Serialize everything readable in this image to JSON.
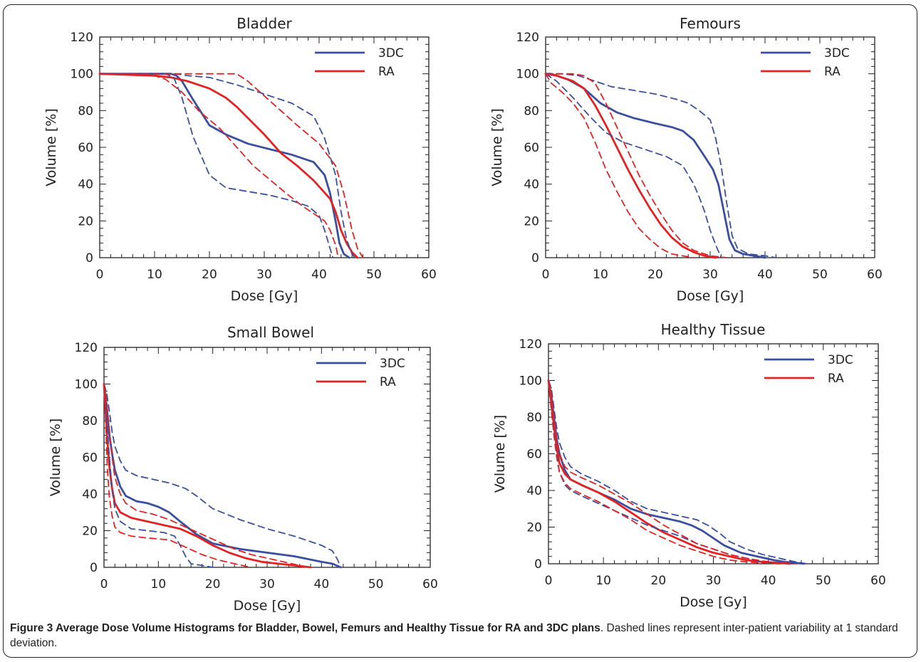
{
  "caption": {
    "bold": "Figure 3 Average Dose Volume Histograms for Bladder, Bowel, Femurs and Healthy Tissue for RA and 3DC plans",
    "rest": ". Dashed lines represent inter-patient variability at 1 standard deviation."
  },
  "colors": {
    "3DC": "#3a4fa0",
    "RA": "#e32222"
  },
  "chart_data": [
    {
      "type": "line",
      "title": "Bladder",
      "xlabel": "Dose [Gy]",
      "ylabel": "Volume [%]",
      "xlim": [
        0,
        60
      ],
      "ylim": [
        0,
        120
      ],
      "xticks": [
        0,
        10,
        20,
        30,
        40,
        50,
        60
      ],
      "yticks": [
        0,
        20,
        40,
        60,
        80,
        100,
        120
      ],
      "legend": [
        "3DC",
        "RA"
      ],
      "legend_position": "top-right",
      "series": [
        {
          "name": "3DC",
          "style": "solid",
          "x": [
            0,
            10,
            13,
            14,
            15,
            17,
            20,
            23,
            27,
            31,
            35,
            39,
            41,
            42,
            43,
            43.7,
            44.5,
            45.5
          ],
          "y": [
            100,
            100,
            100,
            99,
            96,
            86,
            72,
            67,
            62,
            59,
            56,
            52,
            45,
            35,
            20,
            8,
            2,
            0
          ]
        },
        {
          "name": "RA",
          "style": "solid",
          "x": [
            0,
            10,
            13,
            16,
            20,
            23,
            25,
            27,
            30,
            33,
            36,
            39,
            42,
            43,
            44,
            45,
            46,
            47
          ],
          "y": [
            100,
            99,
            98,
            96,
            92,
            87,
            82,
            76,
            67,
            57,
            50,
            42,
            32,
            25,
            15,
            8,
            3,
            0
          ]
        },
        {
          "style": "dashed",
          "color": "3DC",
          "x": [
            0,
            12,
            13.5,
            15,
            17,
            20,
            23,
            27,
            31,
            35,
            38,
            40,
            41,
            42,
            42.5
          ],
          "y": [
            100,
            100,
            98,
            87,
            66,
            45,
            38,
            36,
            34,
            31,
            28,
            23,
            15,
            5,
            0
          ]
        },
        {
          "style": "dashed",
          "color": "3DC",
          "x": [
            0,
            13,
            14,
            16,
            20,
            25,
            30,
            35,
            39,
            41,
            43,
            44,
            45,
            46,
            46.5
          ],
          "y": [
            100,
            100,
            100,
            99,
            98,
            94,
            89,
            84,
            77,
            65,
            45,
            25,
            10,
            2,
            0
          ]
        },
        {
          "style": "dashed",
          "color": "RA",
          "x": [
            0,
            10,
            12,
            15,
            18,
            22,
            25,
            28,
            30,
            32,
            34,
            37,
            39,
            41,
            42,
            43,
            43.5
          ],
          "y": [
            100,
            99,
            97,
            90,
            80,
            70,
            60,
            50,
            45,
            40,
            35,
            28,
            24,
            20,
            15,
            7,
            0
          ]
        },
        {
          "style": "dashed",
          "color": "RA",
          "x": [
            0,
            20,
            25,
            27,
            30,
            33,
            36,
            40,
            43,
            44.5,
            46,
            47,
            48
          ],
          "y": [
            100,
            100,
            100,
            96,
            88,
            80,
            72,
            62,
            50,
            35,
            15,
            5,
            0
          ]
        }
      ]
    },
    {
      "type": "line",
      "title": "Femours",
      "xlabel": "Dose [Gy]",
      "ylabel": "Volume [%]",
      "xlim": [
        0,
        60
      ],
      "ylim": [
        0,
        120
      ],
      "xticks": [
        0,
        10,
        20,
        30,
        40,
        50,
        60
      ],
      "yticks": [
        0,
        20,
        40,
        60,
        80,
        100,
        120
      ],
      "legend": [
        "3DC",
        "RA"
      ],
      "legend_position": "top-right",
      "series": [
        {
          "name": "3DC",
          "style": "solid",
          "x": [
            0,
            1,
            2,
            4,
            7,
            10,
            13,
            16,
            20,
            23,
            25,
            27,
            29,
            30.5,
            31.5,
            32.5,
            33.5,
            34.5,
            36,
            38,
            40
          ],
          "y": [
            100,
            100,
            99,
            97,
            92,
            84,
            79,
            76,
            73,
            71,
            69,
            64,
            55,
            48,
            40,
            25,
            10,
            4,
            2,
            1,
            0
          ]
        },
        {
          "name": "RA",
          "style": "solid",
          "x": [
            0,
            2,
            5,
            7,
            9,
            11,
            13,
            15,
            17,
            19,
            21,
            23,
            25,
            27,
            29,
            31
          ],
          "y": [
            100,
            99,
            96,
            92,
            83,
            72,
            60,
            48,
            37,
            27,
            18,
            11,
            6,
            3,
            1,
            0
          ]
        },
        {
          "style": "dashed",
          "color": "3DC",
          "x": [
            0,
            2,
            5,
            8,
            11,
            14,
            18,
            22,
            25,
            27,
            28,
            29,
            30,
            31,
            32
          ],
          "y": [
            100,
            96,
            87,
            77,
            68,
            63,
            59,
            55,
            50,
            40,
            33,
            25,
            15,
            7,
            0
          ]
        },
        {
          "style": "dashed",
          "color": "3DC",
          "x": [
            0,
            1,
            3,
            6,
            9,
            12,
            16,
            20,
            24,
            26,
            28,
            30,
            31,
            32,
            33,
            34,
            35,
            37,
            40,
            42
          ],
          "y": [
            100,
            100,
            100,
            99,
            96,
            93,
            91,
            89,
            86,
            84,
            80,
            75,
            65,
            50,
            30,
            12,
            5,
            2,
            1,
            0
          ]
        },
        {
          "style": "dashed",
          "color": "RA",
          "x": [
            0,
            1,
            3,
            5,
            7,
            9,
            11,
            13,
            15,
            17,
            19,
            21,
            23,
            25,
            27
          ],
          "y": [
            100,
            95,
            90,
            84,
            76,
            63,
            48,
            36,
            25,
            16,
            10,
            5,
            2,
            1,
            0
          ]
        },
        {
          "style": "dashed",
          "color": "RA",
          "x": [
            0,
            3,
            5,
            7,
            9,
            11,
            13,
            15,
            17,
            19,
            21,
            23,
            25,
            27,
            30,
            33
          ],
          "y": [
            100,
            100,
            100,
            99,
            95,
            84,
            71,
            58,
            45,
            34,
            24,
            15,
            8,
            4,
            1,
            0
          ]
        }
      ]
    },
    {
      "type": "line",
      "title": "Small Bowel",
      "xlabel": "Dose [Gy]",
      "ylabel": "Volume [%]",
      "xlim": [
        0,
        60
      ],
      "ylim": [
        0,
        120
      ],
      "xticks": [
        0,
        10,
        20,
        30,
        40,
        50,
        60
      ],
      "yticks": [
        0,
        20,
        40,
        60,
        80,
        100,
        120
      ],
      "legend": [
        "3DC",
        "RA"
      ],
      "legend_position": "top-right",
      "series": [
        {
          "name": "3DC",
          "style": "solid",
          "x": [
            0,
            0.5,
            1,
            1.5,
            2,
            3,
            4,
            6,
            8,
            10,
            12,
            14,
            17,
            20,
            25,
            30,
            35,
            40,
            42,
            43.5
          ],
          "y": [
            100,
            88,
            72,
            62,
            53,
            44,
            39,
            36,
            35,
            33,
            30,
            25,
            18,
            13,
            10,
            8,
            6,
            3,
            2,
            0
          ]
        },
        {
          "name": "RA",
          "style": "solid",
          "x": [
            0,
            0.3,
            0.6,
            1,
            1.5,
            2,
            3,
            5,
            8,
            11,
            14,
            17,
            20,
            23,
            26,
            29,
            32,
            35,
            38
          ],
          "y": [
            100,
            85,
            70,
            55,
            43,
            35,
            30,
            27,
            25,
            23,
            21,
            17,
            12,
            8,
            5,
            3,
            2,
            1,
            0
          ]
        },
        {
          "style": "dashed",
          "color": "3DC",
          "x": [
            0,
            1,
            1.5,
            2,
            3,
            5,
            8,
            11,
            13,
            14,
            15,
            16,
            18,
            20
          ],
          "y": [
            100,
            60,
            42,
            32,
            25,
            21,
            20,
            19,
            17,
            12,
            6,
            2,
            1,
            0
          ]
        },
        {
          "style": "dashed",
          "color": "3DC",
          "x": [
            0,
            0.5,
            1,
            1.5,
            2,
            3,
            4,
            6,
            9,
            12,
            15,
            17,
            20,
            25,
            30,
            35,
            40,
            42,
            43,
            43.5
          ],
          "y": [
            100,
            95,
            85,
            74,
            66,
            58,
            53,
            50,
            48,
            46,
            43,
            39,
            32,
            26,
            21,
            17,
            12,
            9,
            4,
            0
          ]
        },
        {
          "style": "dashed",
          "color": "RA",
          "x": [
            0,
            0.3,
            0.6,
            1,
            1.5,
            2,
            3,
            5,
            8,
            12,
            15,
            18,
            21,
            24,
            27
          ],
          "y": [
            100,
            80,
            55,
            38,
            28,
            22,
            19,
            17,
            16,
            15,
            11,
            7,
            4,
            2,
            0
          ]
        },
        {
          "style": "dashed",
          "color": "RA",
          "x": [
            0,
            0.5,
            1,
            1.5,
            2,
            3,
            4,
            6,
            9,
            12,
            15,
            18,
            21,
            24,
            27,
            30,
            33,
            36,
            38
          ],
          "y": [
            100,
            90,
            75,
            60,
            49,
            40,
            35,
            31,
            29,
            26,
            22,
            18,
            14,
            10,
            7,
            5,
            3,
            1,
            0
          ]
        }
      ]
    },
    {
      "type": "line",
      "title": "Healthy Tissue",
      "xlabel": "Dose [Gy]",
      "ylabel": "Volume [%]",
      "xlim": [
        0,
        60
      ],
      "ylim": [
        0,
        120
      ],
      "xticks": [
        0,
        10,
        20,
        30,
        40,
        50,
        60
      ],
      "yticks": [
        0,
        20,
        40,
        60,
        80,
        100,
        120
      ],
      "legend": [
        "3DC",
        "RA"
      ],
      "legend_position": "top-right",
      "series": [
        {
          "name": "3DC",
          "style": "solid",
          "x": [
            0,
            0.5,
            1,
            1.5,
            2,
            3,
            4,
            6,
            9,
            12,
            15,
            18,
            21,
            24,
            26,
            28,
            30,
            32,
            35,
            38,
            41,
            43,
            45,
            46.5
          ],
          "y": [
            100,
            92,
            80,
            68,
            60,
            51,
            46,
            43,
            39,
            35,
            30,
            27,
            25,
            23,
            21,
            18,
            14,
            10,
            6,
            4,
            2,
            1,
            0.5,
            0
          ]
        },
        {
          "name": "RA",
          "style": "solid",
          "x": [
            0,
            0.5,
            1,
            1.5,
            2,
            3,
            4,
            6,
            9,
            12,
            15,
            18,
            21,
            24,
            27,
            30,
            33,
            36,
            39,
            42,
            44
          ],
          "y": [
            100,
            88,
            75,
            63,
            55,
            49,
            46,
            43,
            39,
            34,
            28,
            22,
            17,
            13,
            9,
            6,
            4,
            2,
            1,
            0.5,
            0
          ]
        },
        {
          "style": "dashed",
          "color": "3DC",
          "x": [
            0,
            0.5,
            1,
            1.5,
            2,
            3,
            4,
            6,
            9,
            12,
            15,
            18,
            21,
            24,
            27,
            30,
            33,
            36,
            39,
            42,
            44
          ],
          "y": [
            100,
            86,
            72,
            60,
            50,
            43,
            40,
            37,
            33,
            29,
            25,
            21,
            18,
            15,
            11,
            8,
            5,
            3,
            1,
            0.5,
            0
          ]
        },
        {
          "style": "dashed",
          "color": "3DC",
          "x": [
            0,
            0.5,
            1,
            1.5,
            2,
            3,
            4,
            6,
            9,
            12,
            15,
            18,
            21,
            24,
            27,
            29,
            31,
            33,
            36,
            39,
            42,
            45,
            47
          ],
          "y": [
            100,
            96,
            85,
            74,
            66,
            58,
            53,
            49,
            45,
            40,
            34,
            30,
            28,
            26,
            24,
            21,
            17,
            12,
            8,
            5,
            3,
            1,
            0
          ]
        },
        {
          "style": "dashed",
          "color": "RA",
          "x": [
            0,
            0.5,
            1,
            1.5,
            2,
            3,
            4,
            6,
            9,
            12,
            15,
            18,
            21,
            24,
            27,
            30,
            33,
            36,
            39,
            42
          ],
          "y": [
            100,
            84,
            70,
            58,
            50,
            44,
            41,
            38,
            34,
            29,
            24,
            18,
            14,
            10,
            7,
            4,
            2,
            1,
            0.5,
            0
          ]
        },
        {
          "style": "dashed",
          "color": "RA",
          "x": [
            0,
            0.5,
            1,
            1.5,
            2,
            3,
            4,
            6,
            9,
            12,
            15,
            18,
            21,
            24,
            27,
            30,
            33,
            36,
            39,
            42,
            45
          ],
          "y": [
            100,
            93,
            80,
            68,
            60,
            53,
            50,
            47,
            43,
            38,
            33,
            27,
            21,
            16,
            11,
            8,
            5,
            3,
            1.5,
            0.5,
            0
          ]
        }
      ]
    }
  ]
}
